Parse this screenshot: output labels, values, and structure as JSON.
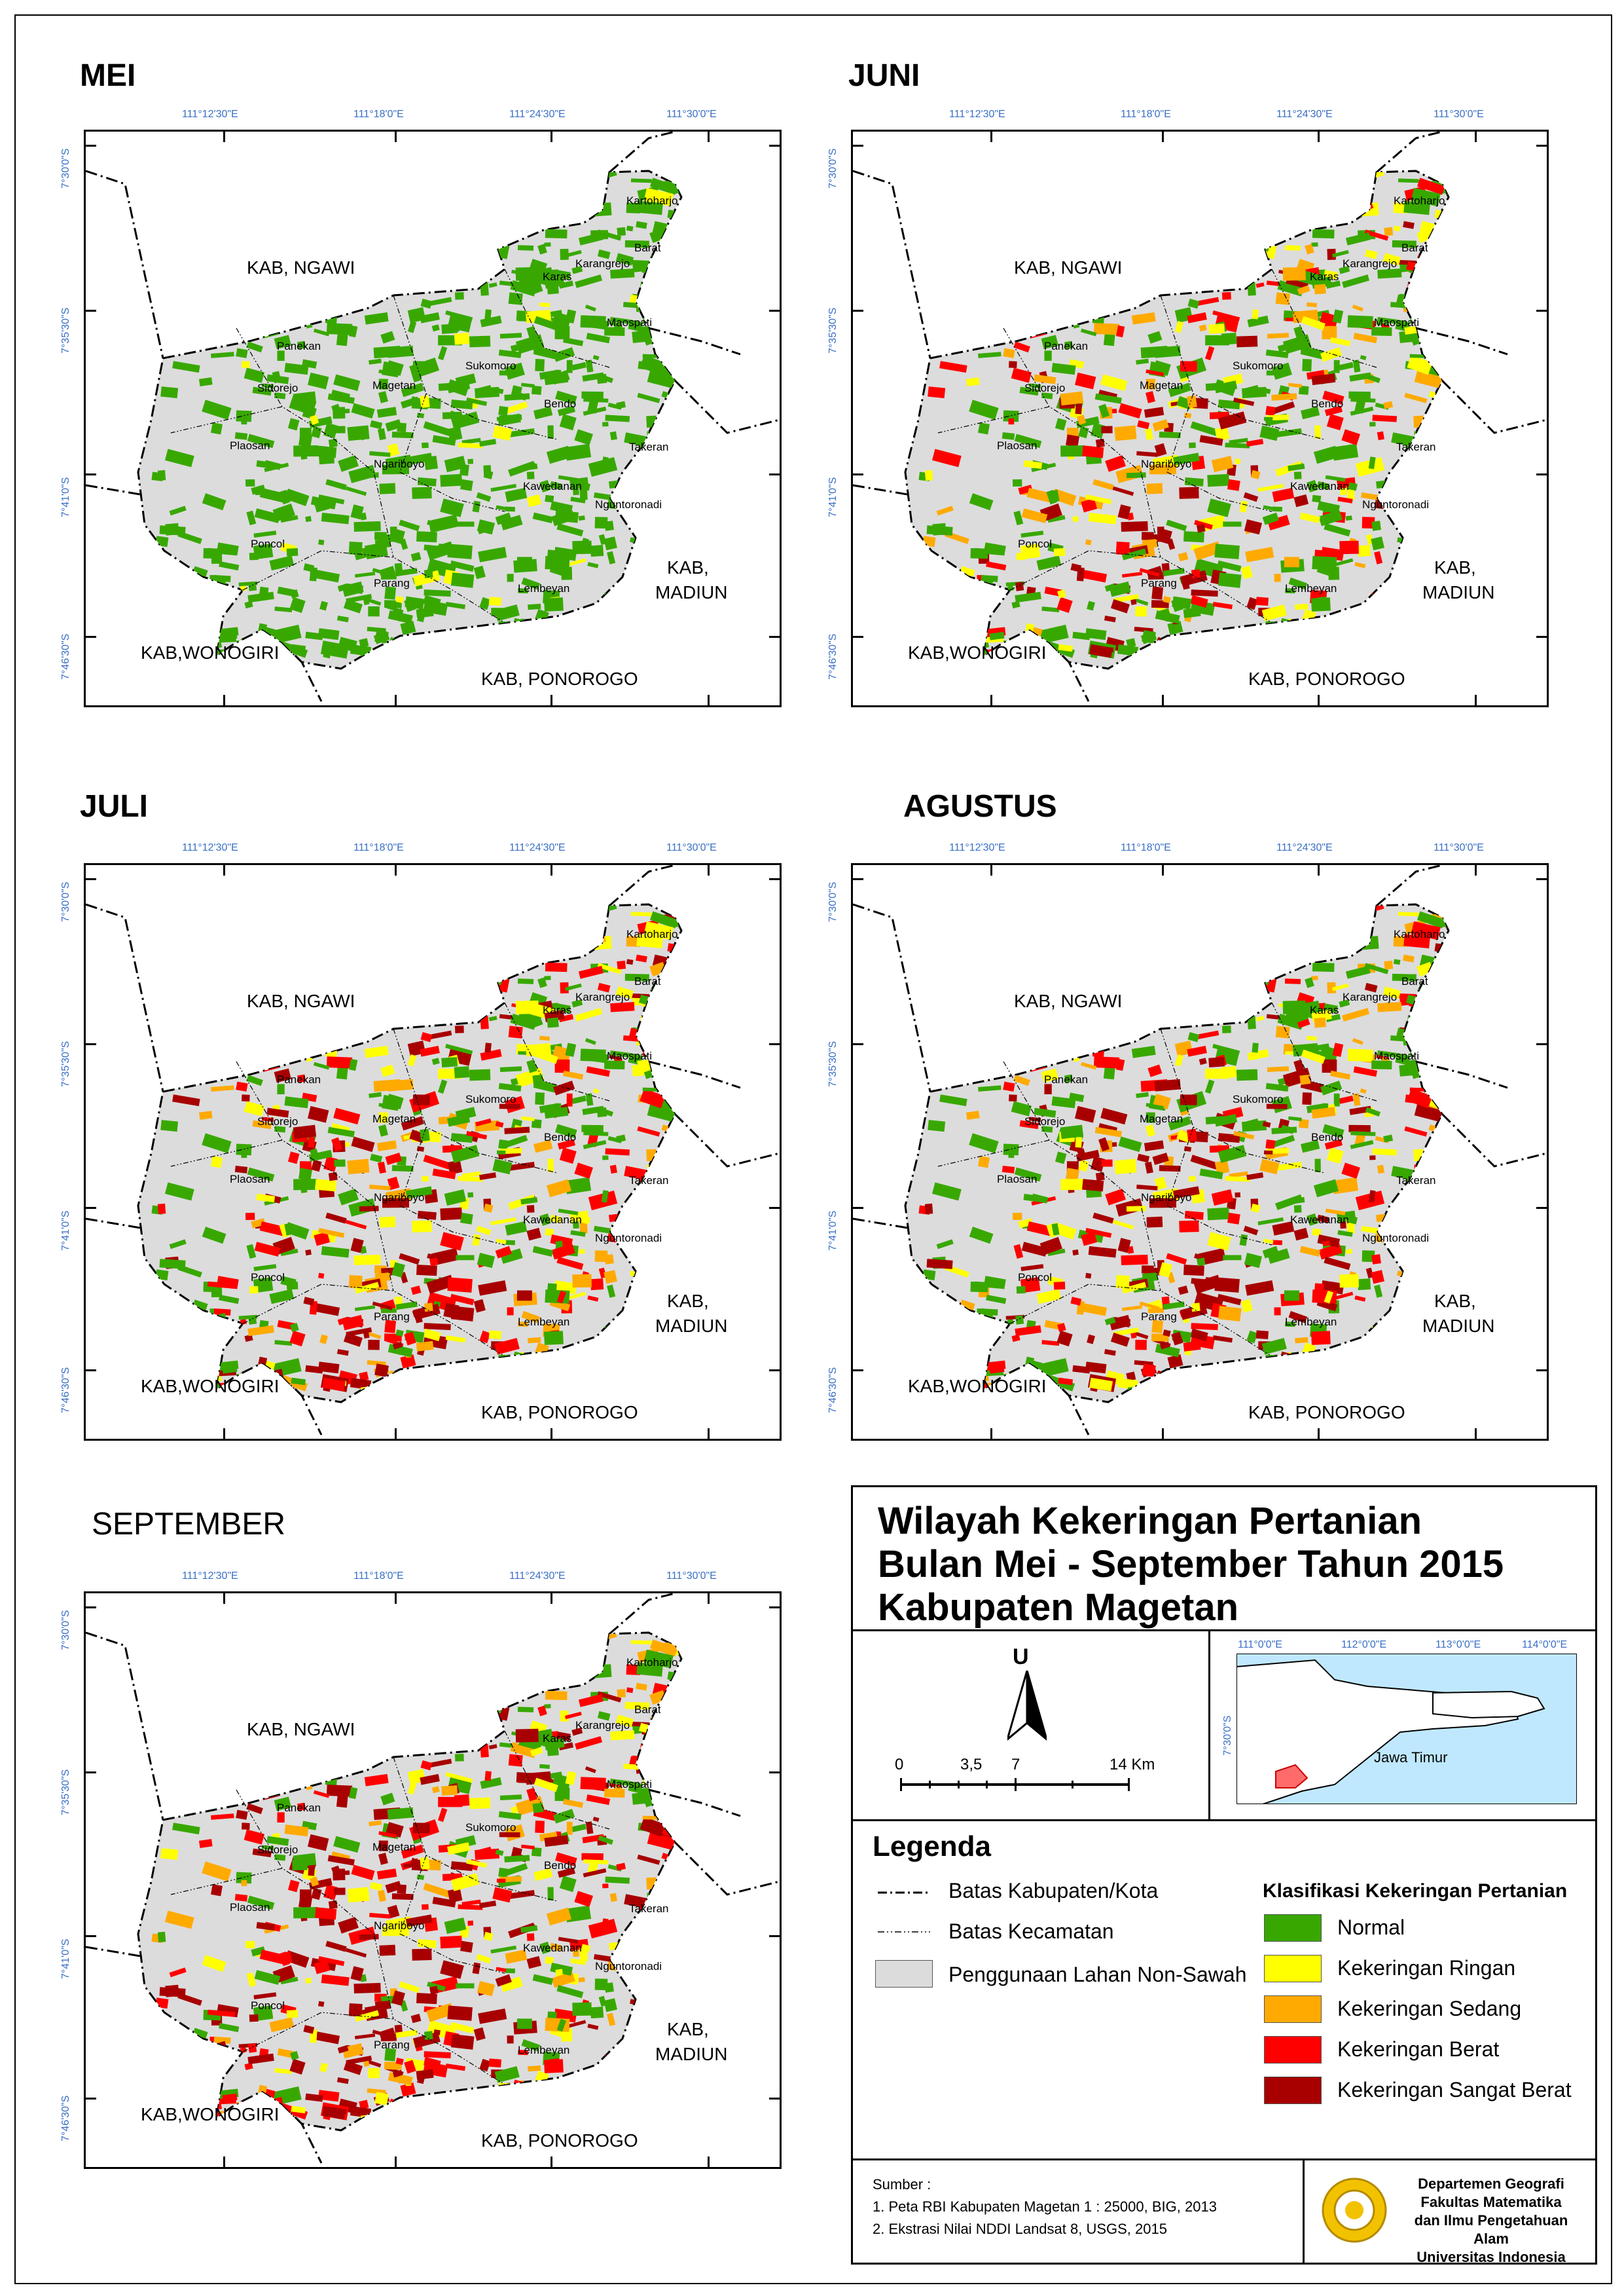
{
  "panels": [
    {
      "id": "mei",
      "title": "MEI"
    },
    {
      "id": "juni",
      "title": "JUNI"
    },
    {
      "id": "juli",
      "title": "JULI"
    },
    {
      "id": "agustus",
      "title": "AGUSTUS"
    },
    {
      "id": "september",
      "title": "SEPTEMBER"
    }
  ],
  "coords": {
    "lon": [
      "111°12'30\"E",
      "111°18'0\"E",
      "111°24'30\"E",
      "111°30'0\"E"
    ],
    "lat": [
      "7°30'0\"S",
      "7°35'30\"S",
      "7°41'0\"S",
      "7°46'30\"S"
    ]
  },
  "regions": {
    "ngawi": "KAB, NGAWI",
    "madiun_1": "KAB,",
    "madiun_2": "MADIUN",
    "wonogiri": "KAB,WONOGIRI",
    "ponorogo": "KAB, PONOROGO"
  },
  "kecamatan": {
    "kartoharjo": "Kartoharjo",
    "barat": "Barat",
    "karangrejo": "Karangrejo",
    "karas": "Karas",
    "maospati": "Maospati",
    "panekan": "Panekan",
    "sukomoro": "Sukomoro",
    "sidorejo": "Sidorejo",
    "magetan": "Magetan",
    "bendo": "Bendo",
    "plaosan": "Plaosan",
    "ngariboyo": "Ngariboyo",
    "takeran": "Takeran",
    "kawedanan": "Kawedanan",
    "nguntoronadi": "Nguntoronadi",
    "poncol": "Poncol",
    "parang": "Parang",
    "lembeyan": "Lembeyan"
  },
  "title": {
    "line1": "Wilayah Kekeringan Pertanian",
    "line2": "Bulan Mei - September Tahun 2015",
    "line3": "Kabupaten Magetan"
  },
  "north_label": "U",
  "scale": {
    "ticks": [
      "0",
      "3,5",
      "7",
      "14 Km"
    ]
  },
  "inset": {
    "lon": [
      "111°0'0\"E",
      "112°0'0\"E",
      "113°0'0\"E",
      "114°0'0\"E"
    ],
    "lat": "7°30'0\"S",
    "label": "Jawa Timur"
  },
  "legend": {
    "heading": "Legenda",
    "lines": [
      {
        "label": "Batas Kabupaten/Kota"
      },
      {
        "label": "Batas Kecamatan"
      }
    ],
    "nonsawah": "Penggunaan Lahan Non-Sawah",
    "class_heading": "Klasifikasi Kekeringan Pertanian",
    "classes": [
      {
        "label": "Normal",
        "color": "#38a800"
      },
      {
        "label": "Kekeringan Ringan",
        "color": "#ffff00"
      },
      {
        "label": "Kekeringan Sedang",
        "color": "#ffaa00"
      },
      {
        "label": "Kekeringan Berat",
        "color": "#ff0000"
      },
      {
        "label": "Kekeringan Sangat Berat",
        "color": "#a80000"
      }
    ]
  },
  "sources": {
    "heading": "Sumber :",
    "items": [
      "1. Peta RBI Kabupaten Magetan 1 : 25000, BIG, 2013",
      "2. Ekstrasi Nilai NDDI Landsat 8, USGS, 2015"
    ]
  },
  "institution": [
    "Departemen Geografi",
    "Fakultas Matematika",
    "dan Ilmu Pengetahuan Alam",
    "Universitas Indonesia"
  ],
  "colors": {
    "nonsawah": "#dcdcdc",
    "normal": "#38a800",
    "ringan": "#ffff00",
    "sedang": "#ffaa00",
    "berat": "#ff0000",
    "sangat_berat": "#a80000",
    "tick": "#3a6fc4",
    "sea": "#bfe8ff"
  },
  "drought_mix": [
    {
      "normal": 0.95,
      "ringan": 0.05,
      "sedang": 0.0,
      "berat": 0.0,
      "sangat_berat": 0.0
    },
    {
      "normal": 0.55,
      "ringan": 0.15,
      "sedang": 0.12,
      "berat": 0.13,
      "sangat_berat": 0.05
    },
    {
      "normal": 0.4,
      "ringan": 0.15,
      "sedang": 0.12,
      "berat": 0.2,
      "sangat_berat": 0.13
    },
    {
      "normal": 0.42,
      "ringan": 0.14,
      "sedang": 0.12,
      "berat": 0.18,
      "sangat_berat": 0.14
    },
    {
      "normal": 0.3,
      "ringan": 0.12,
      "sedang": 0.12,
      "berat": 0.24,
      "sangat_berat": 0.22
    }
  ]
}
